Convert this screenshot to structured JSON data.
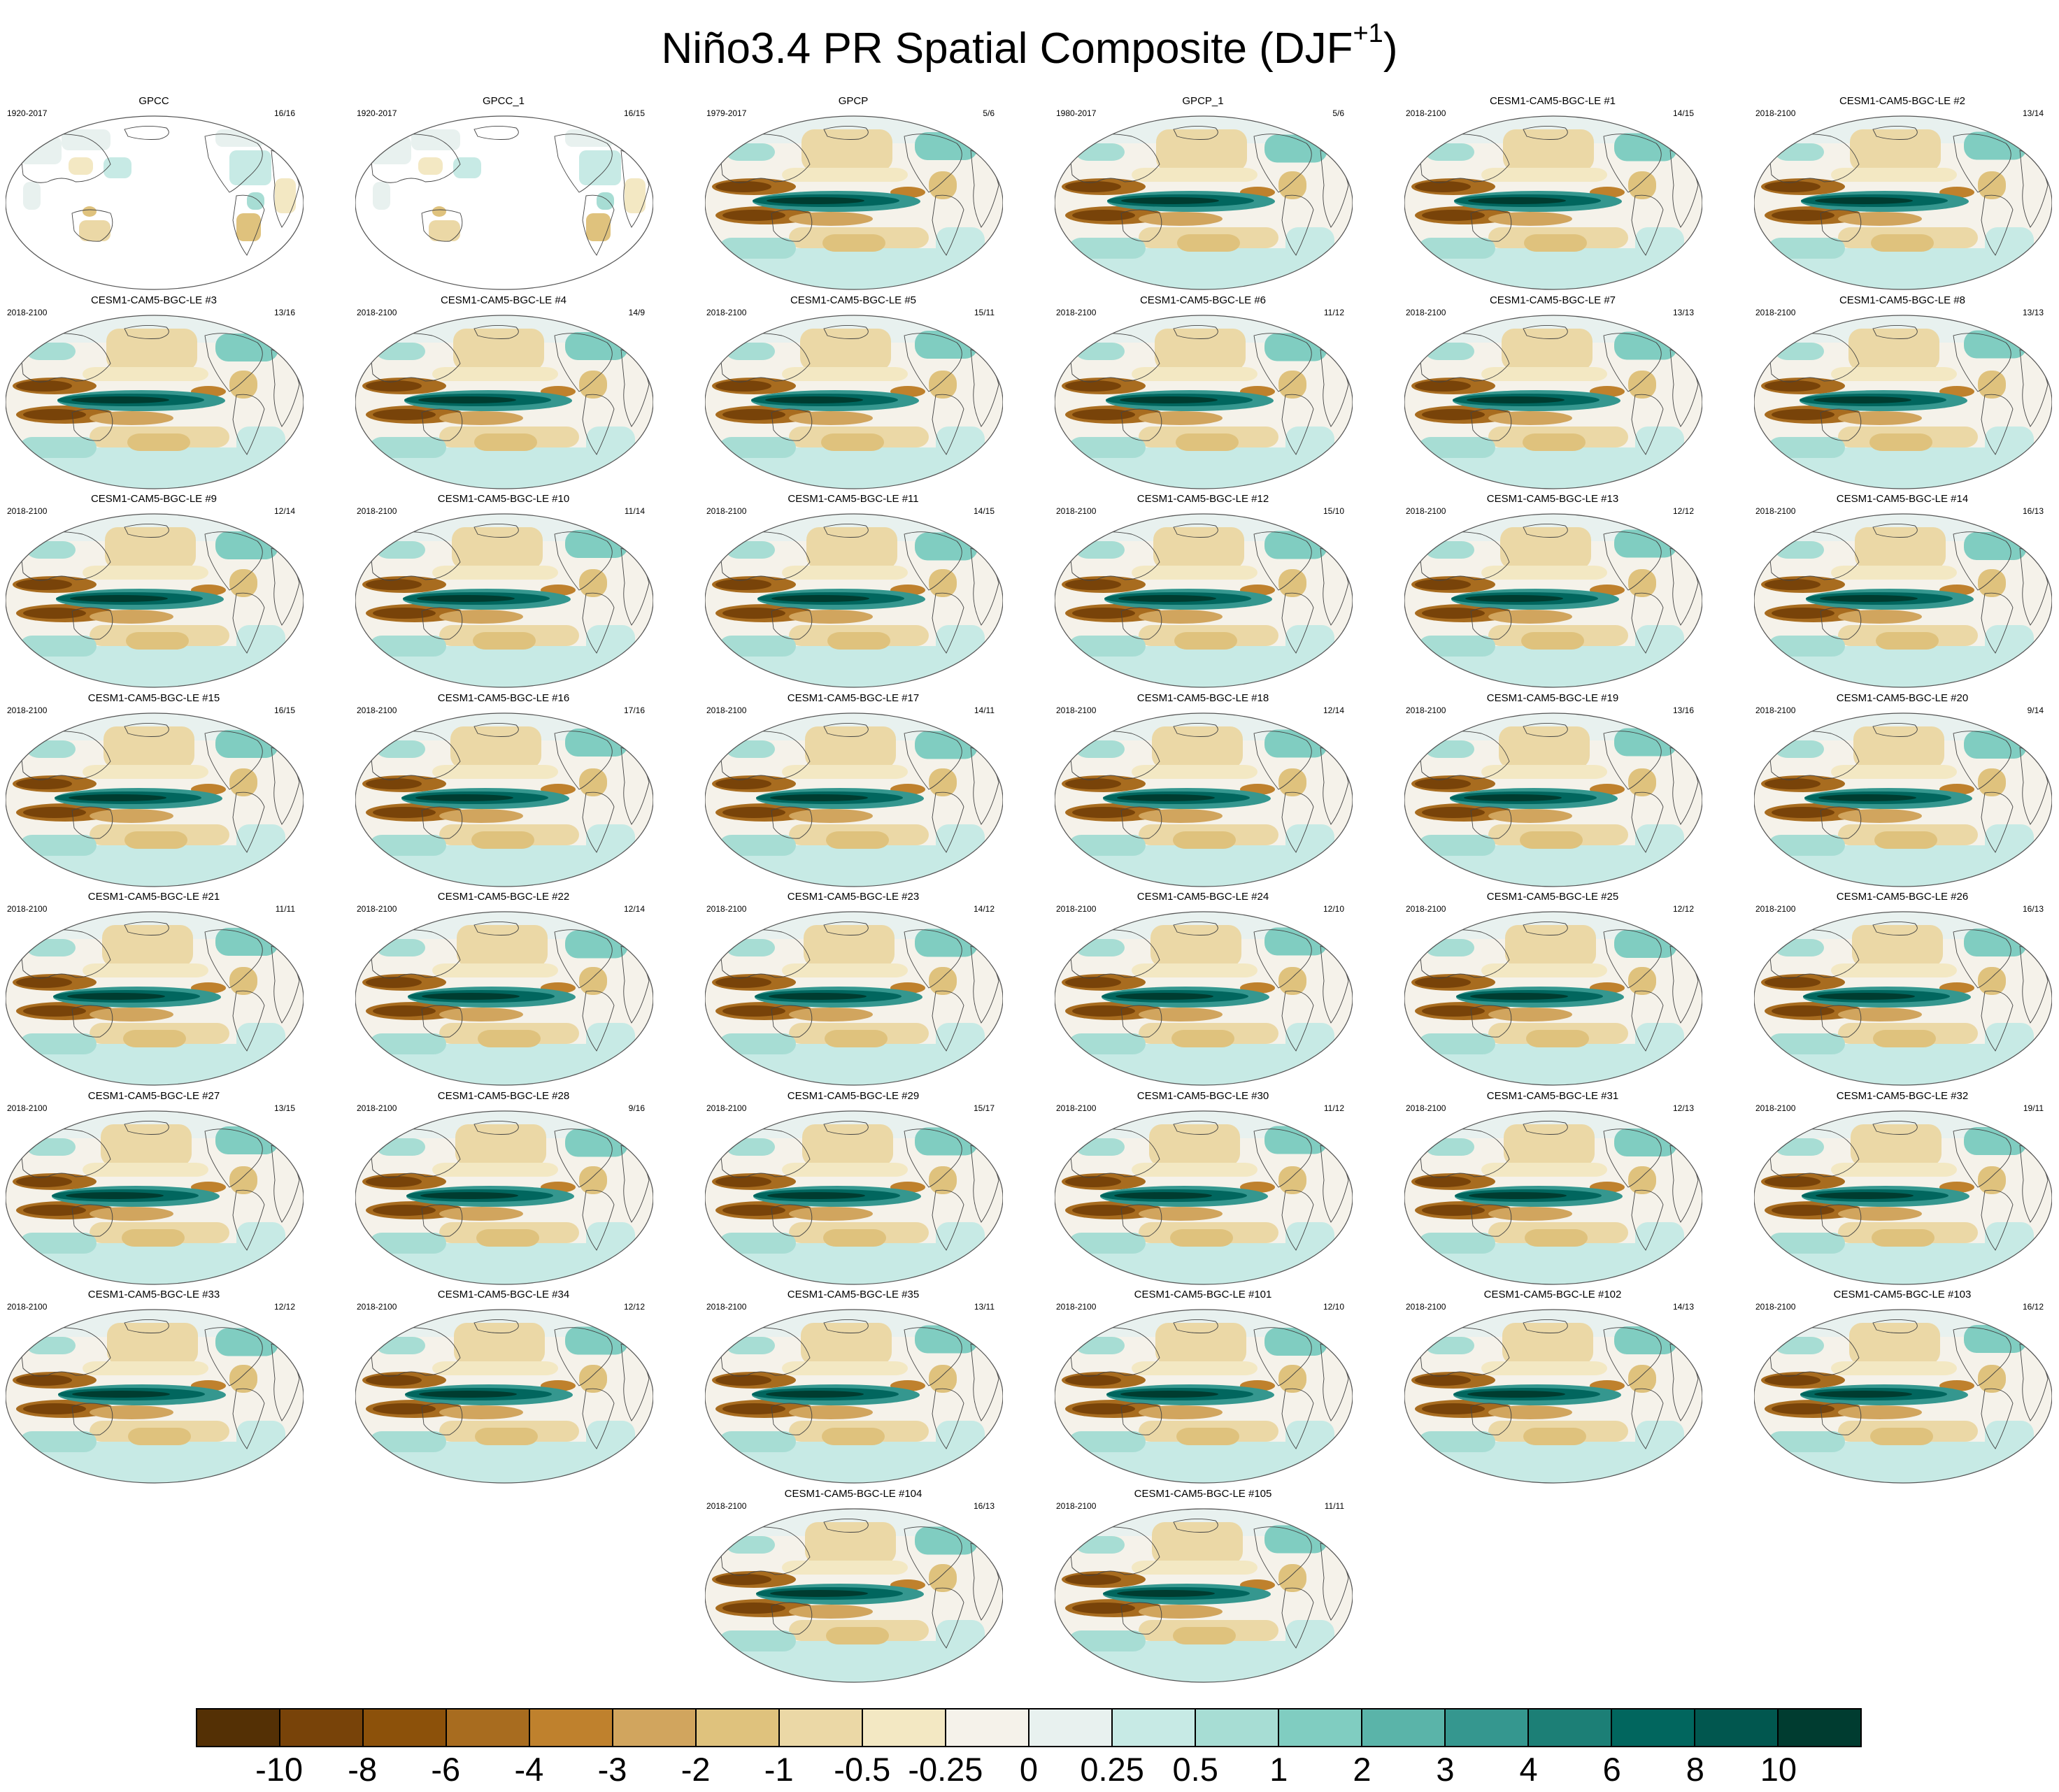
{
  "title": "Niño3.4 PR Spatial Composite (DJF",
  "title_superscript": "+1",
  "title_close": ")",
  "panels": [
    {
      "title": "GPCC",
      "years": "1920-2017",
      "count": "16/16",
      "kind": "land"
    },
    {
      "title": "GPCC_1",
      "years": "1920-2017",
      "count": "16/15",
      "kind": "land"
    },
    {
      "title": "GPCP",
      "years": "1979-2017",
      "count": "5/6",
      "kind": "obs"
    },
    {
      "title": "GPCP_1",
      "years": "1980-2017",
      "count": "5/6",
      "kind": "obs"
    },
    {
      "title": "CESM1-CAM5-BGC-LE #1",
      "years": "2018-2100",
      "count": "14/15",
      "kind": "model"
    },
    {
      "title": "CESM1-CAM5-BGC-LE #2",
      "years": "2018-2100",
      "count": "13/14",
      "kind": "model"
    },
    {
      "title": "CESM1-CAM5-BGC-LE #3",
      "years": "2018-2100",
      "count": "13/16",
      "kind": "model"
    },
    {
      "title": "CESM1-CAM5-BGC-LE #4",
      "years": "2018-2100",
      "count": "14/9",
      "kind": "model"
    },
    {
      "title": "CESM1-CAM5-BGC-LE #5",
      "years": "2018-2100",
      "count": "15/11",
      "kind": "model"
    },
    {
      "title": "CESM1-CAM5-BGC-LE #6",
      "years": "2018-2100",
      "count": "11/12",
      "kind": "model"
    },
    {
      "title": "CESM1-CAM5-BGC-LE #7",
      "years": "2018-2100",
      "count": "13/13",
      "kind": "model"
    },
    {
      "title": "CESM1-CAM5-BGC-LE #8",
      "years": "2018-2100",
      "count": "13/13",
      "kind": "model"
    },
    {
      "title": "CESM1-CAM5-BGC-LE #9",
      "years": "2018-2100",
      "count": "12/14",
      "kind": "model"
    },
    {
      "title": "CESM1-CAM5-BGC-LE #10",
      "years": "2018-2100",
      "count": "11/14",
      "kind": "model"
    },
    {
      "title": "CESM1-CAM5-BGC-LE #11",
      "years": "2018-2100",
      "count": "14/15",
      "kind": "model"
    },
    {
      "title": "CESM1-CAM5-BGC-LE #12",
      "years": "2018-2100",
      "count": "15/10",
      "kind": "model"
    },
    {
      "title": "CESM1-CAM5-BGC-LE #13",
      "years": "2018-2100",
      "count": "12/12",
      "kind": "model"
    },
    {
      "title": "CESM1-CAM5-BGC-LE #14",
      "years": "2018-2100",
      "count": "16/13",
      "kind": "model"
    },
    {
      "title": "CESM1-CAM5-BGC-LE #15",
      "years": "2018-2100",
      "count": "16/15",
      "kind": "model"
    },
    {
      "title": "CESM1-CAM5-BGC-LE #16",
      "years": "2018-2100",
      "count": "17/16",
      "kind": "model"
    },
    {
      "title": "CESM1-CAM5-BGC-LE #17",
      "years": "2018-2100",
      "count": "14/11",
      "kind": "model"
    },
    {
      "title": "CESM1-CAM5-BGC-LE #18",
      "years": "2018-2100",
      "count": "12/14",
      "kind": "model"
    },
    {
      "title": "CESM1-CAM5-BGC-LE #19",
      "years": "2018-2100",
      "count": "13/16",
      "kind": "model"
    },
    {
      "title": "CESM1-CAM5-BGC-LE #20",
      "years": "2018-2100",
      "count": "9/14",
      "kind": "model"
    },
    {
      "title": "CESM1-CAM5-BGC-LE #21",
      "years": "2018-2100",
      "count": "11/11",
      "kind": "model"
    },
    {
      "title": "CESM1-CAM5-BGC-LE #22",
      "years": "2018-2100",
      "count": "12/14",
      "kind": "model"
    },
    {
      "title": "CESM1-CAM5-BGC-LE #23",
      "years": "2018-2100",
      "count": "14/12",
      "kind": "model"
    },
    {
      "title": "CESM1-CAM5-BGC-LE #24",
      "years": "2018-2100",
      "count": "12/10",
      "kind": "model"
    },
    {
      "title": "CESM1-CAM5-BGC-LE #25",
      "years": "2018-2100",
      "count": "12/12",
      "kind": "model"
    },
    {
      "title": "CESM1-CAM5-BGC-LE #26",
      "years": "2018-2100",
      "count": "16/13",
      "kind": "model"
    },
    {
      "title": "CESM1-CAM5-BGC-LE #27",
      "years": "2018-2100",
      "count": "13/15",
      "kind": "model"
    },
    {
      "title": "CESM1-CAM5-BGC-LE #28",
      "years": "2018-2100",
      "count": "9/16",
      "kind": "model"
    },
    {
      "title": "CESM1-CAM5-BGC-LE #29",
      "years": "2018-2100",
      "count": "15/17",
      "kind": "model"
    },
    {
      "title": "CESM1-CAM5-BGC-LE #30",
      "years": "2018-2100",
      "count": "11/12",
      "kind": "model"
    },
    {
      "title": "CESM1-CAM5-BGC-LE #31",
      "years": "2018-2100",
      "count": "12/13",
      "kind": "model"
    },
    {
      "title": "CESM1-CAM5-BGC-LE #32",
      "years": "2018-2100",
      "count": "19/11",
      "kind": "model"
    },
    {
      "title": "CESM1-CAM5-BGC-LE #33",
      "years": "2018-2100",
      "count": "12/12",
      "kind": "model"
    },
    {
      "title": "CESM1-CAM5-BGC-LE #34",
      "years": "2018-2100",
      "count": "12/12",
      "kind": "model"
    },
    {
      "title": "CESM1-CAM5-BGC-LE #35",
      "years": "2018-2100",
      "count": "13/11",
      "kind": "model"
    },
    {
      "title": "CESM1-CAM5-BGC-LE #101",
      "years": "2018-2100",
      "count": "12/10",
      "kind": "model"
    },
    {
      "title": "CESM1-CAM5-BGC-LE #102",
      "years": "2018-2100",
      "count": "14/13",
      "kind": "model"
    },
    {
      "title": "CESM1-CAM5-BGC-LE #103",
      "years": "2018-2100",
      "count": "16/12",
      "kind": "model"
    },
    {
      "title": "CESM1-CAM5-BGC-LE #104",
      "years": "2018-2100",
      "count": "16/13",
      "kind": "model"
    },
    {
      "title": "CESM1-CAM5-BGC-LE #105",
      "years": "2018-2100",
      "count": "11/11",
      "kind": "model"
    }
  ],
  "colorbar": {
    "colors": [
      "#543005",
      "#784309",
      "#8c510a",
      "#a86c1f",
      "#bf812d",
      "#d1a55e",
      "#dfc27d",
      "#ebd8a6",
      "#f3e8c3",
      "#f5f2ea",
      "#e8f1ef",
      "#c7eae5",
      "#a7ddd4",
      "#80cdc1",
      "#5ab4a9",
      "#35978f",
      "#1c7f76",
      "#01665e",
      "#01574f",
      "#003c30"
    ],
    "labels": [
      "-10",
      "-8",
      "-6",
      "-4",
      "-3",
      "-2",
      "-1",
      "-0.5",
      "-0.25",
      "0",
      "0.25",
      "0.5",
      "1",
      "2",
      "3",
      "4",
      "6",
      "8",
      "10"
    ]
  }
}
